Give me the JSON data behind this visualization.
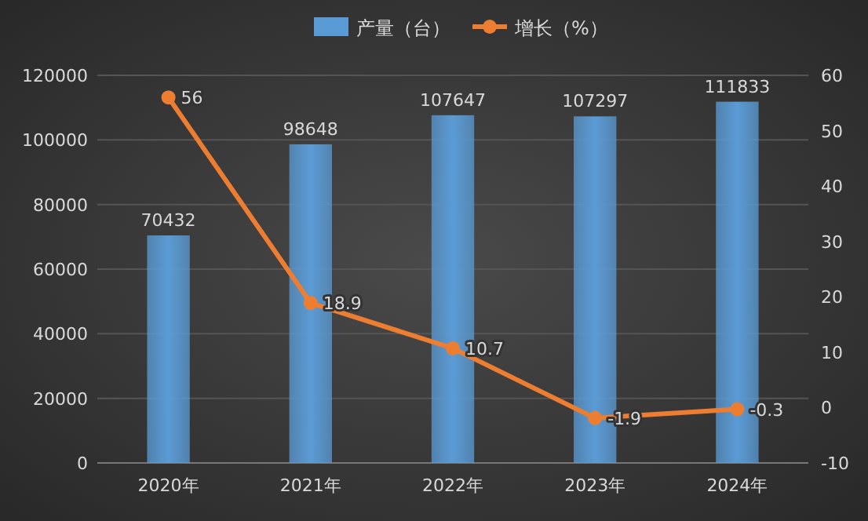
{
  "chart_data": {
    "type": "bar",
    "categories": [
      "2020年",
      "2021年",
      "2022年",
      "2023年",
      "2024年"
    ],
    "series": [
      {
        "name": "产量（台）",
        "color": "#5b9bd5",
        "values": [
          70432,
          98648,
          107647,
          107297,
          111833
        ]
      },
      {
        "name": "增长（%）",
        "type": "line",
        "axis": "y2",
        "color": "#ed7d31",
        "values": [
          56,
          18.9,
          10.7,
          -1.9,
          -0.3
        ]
      }
    ],
    "ylim": [
      0,
      120000
    ],
    "yticks": [
      0,
      20000,
      40000,
      60000,
      80000,
      100000,
      120000
    ],
    "y2lim": [
      -10,
      60
    ],
    "y2ticks": [
      -10,
      0,
      10,
      20,
      30,
      40,
      50,
      60
    ],
    "data_labels": true,
    "legend": "top",
    "grid": "y",
    "marker": "circle"
  }
}
